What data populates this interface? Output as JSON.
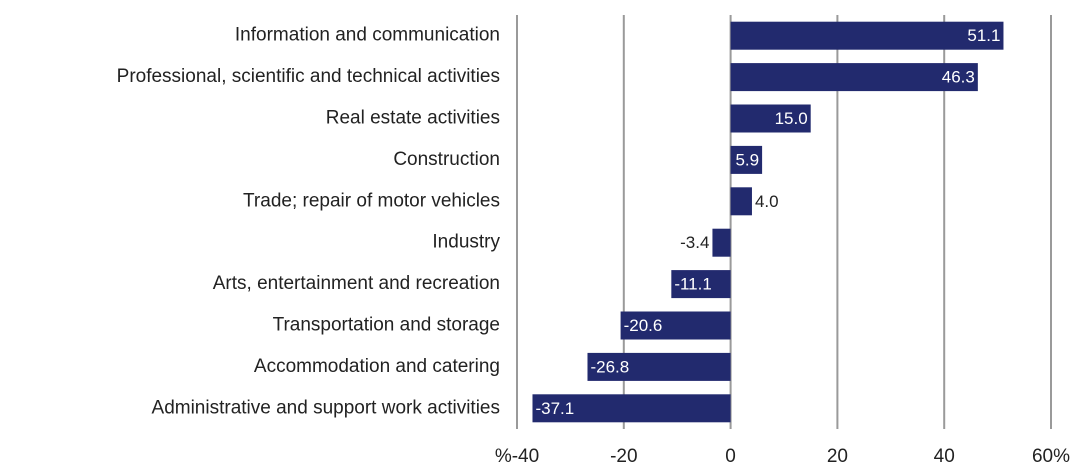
{
  "chart_data": {
    "type": "hbar",
    "categories": [
      "Information and communication",
      "Professional, scientific and technical activities",
      "Real estate activities",
      "Construction",
      "Trade; repair of motor vehicles",
      "Industry",
      "Arts, entertainment and recreation",
      "Transportation and storage",
      "Accommodation and catering",
      "Administrative and support work activities"
    ],
    "values": [
      51.1,
      46.3,
      15.0,
      5.9,
      4.0,
      -3.4,
      -11.1,
      -20.6,
      -26.8,
      -37.1
    ],
    "value_labels": [
      "51.1",
      "46.3",
      "15.0",
      "5.9",
      "4.0",
      "-3.4",
      "-11.1",
      "-20.6",
      "-26.8",
      "-37.1"
    ],
    "color": "#222a6e",
    "xlim": [
      -40,
      60
    ],
    "xticks": [
      {
        "value": -40,
        "label": "%-40"
      },
      -20,
      0,
      20,
      40,
      {
        "value": 60,
        "label": "60%"
      }
    ],
    "grid": true
  }
}
